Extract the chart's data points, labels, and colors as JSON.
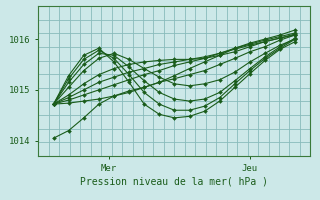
{
  "title": "Pression niveau de la mer( hPa )",
  "bg_color": "#cce8e8",
  "grid_color": "#88bbbb",
  "line_color": "#1a5c1a",
  "marker_color": "#1a5c1a",
  "ylim": [
    1013.7,
    1016.65
  ],
  "xlim": [
    0,
    54
  ],
  "yticks": [
    1014,
    1015,
    1016
  ],
  "xtick_positions": [
    14,
    42
  ],
  "xtick_labels": [
    "Mer",
    "Jeu"
  ],
  "n_xgrid": 27,
  "n_ygrid": 12,
  "series": [
    [
      0,
      1014.72,
      1014.74,
      1014.78,
      1014.82,
      1014.88,
      1014.95,
      1015.05,
      1015.15,
      1015.28,
      1015.42,
      1015.55,
      1015.68,
      1015.82,
      1015.92,
      1016.0,
      1016.08,
      1016.18
    ],
    [
      0,
      1014.72,
      1014.8,
      1014.9,
      1015.0,
      1015.1,
      1015.2,
      1015.3,
      1015.38,
      1015.48,
      1015.55,
      1015.62,
      1015.72,
      1015.82,
      1015.9,
      1015.98,
      1016.05,
      1016.12
    ],
    [
      0,
      1014.72,
      1014.85,
      1015.0,
      1015.15,
      1015.25,
      1015.35,
      1015.42,
      1015.5,
      1015.55,
      1015.6,
      1015.65,
      1015.72,
      1015.8,
      1015.88,
      1015.95,
      1016.02,
      1016.1
    ],
    [
      0,
      1014.72,
      1014.9,
      1015.12,
      1015.3,
      1015.42,
      1015.5,
      1015.55,
      1015.58,
      1015.6,
      1015.6,
      1015.62,
      1015.68,
      1015.75,
      1015.85,
      1015.95,
      1016.02,
      1016.08
    ],
    [
      0,
      1014.72,
      1015.05,
      1015.38,
      1015.62,
      1015.72,
      1015.6,
      1015.42,
      1015.25,
      1015.12,
      1015.08,
      1015.12,
      1015.2,
      1015.35,
      1015.55,
      1015.72,
      1015.88,
      1016.0
    ],
    [
      0,
      1014.72,
      1015.15,
      1015.5,
      1015.72,
      1015.68,
      1015.45,
      1015.18,
      1014.95,
      1014.82,
      1014.78,
      1014.82,
      1014.95,
      1015.18,
      1015.42,
      1015.65,
      1015.85,
      1016.02
    ],
    [
      0,
      1014.72,
      1015.22,
      1015.6,
      1015.78,
      1015.62,
      1015.3,
      1014.95,
      1014.72,
      1014.6,
      1014.6,
      1014.68,
      1014.85,
      1015.12,
      1015.38,
      1015.62,
      1015.82,
      1016.0
    ],
    [
      0,
      1014.72,
      1015.28,
      1015.68,
      1015.82,
      1015.55,
      1015.15,
      1014.72,
      1014.52,
      1014.45,
      1014.48,
      1014.58,
      1014.78,
      1015.05,
      1015.32,
      1015.58,
      1015.8,
      1015.95
    ],
    [
      0,
      1014.05,
      1014.2,
      1014.45,
      1014.72,
      1014.88,
      1014.98,
      1015.05,
      1015.15,
      1015.22,
      1015.3,
      1015.38,
      1015.5,
      1015.62,
      1015.75,
      1015.85,
      1015.98,
      1016.08
    ]
  ],
  "x_positions": [
    0,
    3,
    6,
    9,
    12,
    15,
    18,
    21,
    24,
    27,
    30,
    33,
    36,
    39,
    42,
    45,
    48,
    51
  ]
}
